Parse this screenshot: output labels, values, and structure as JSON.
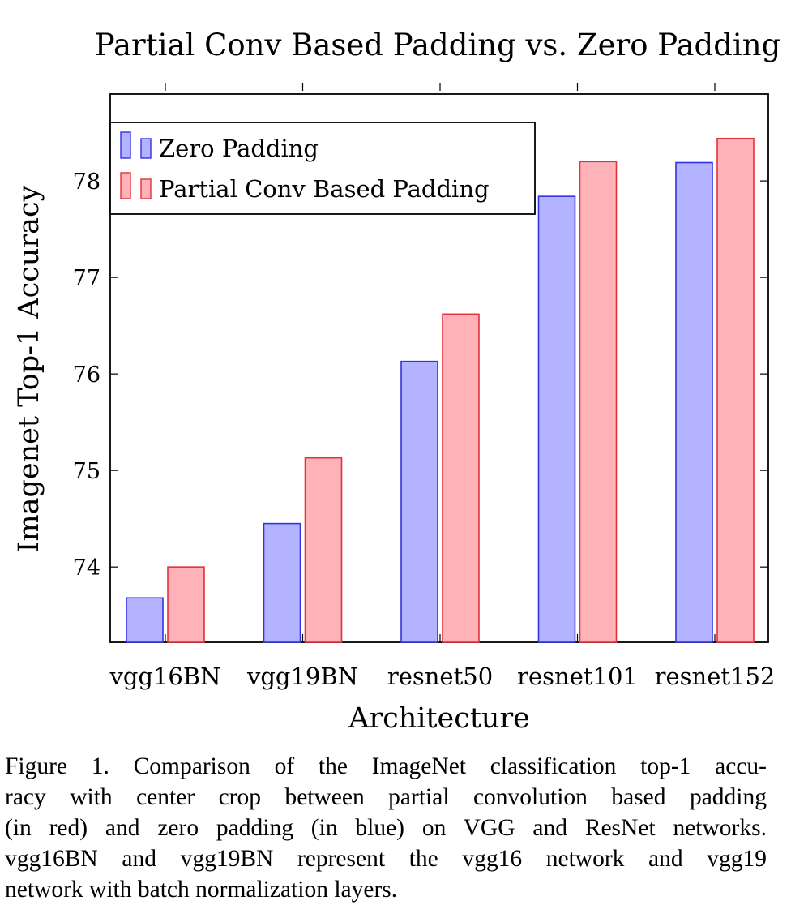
{
  "chart_data": {
    "type": "bar",
    "title": "Partial Conv Based Padding vs. Zero Padding",
    "xlabel": "Architecture",
    "ylabel": "Imagenet Top-1 Accuracy",
    "categories": [
      "vgg16BN",
      "vgg19BN",
      "resnet50",
      "resnet101",
      "resnet152"
    ],
    "series": [
      {
        "name": "Zero Padding",
        "color": "#b3b3ff",
        "stroke": "#3333e6",
        "values": [
          73.68,
          74.45,
          76.13,
          77.84,
          78.19
        ]
      },
      {
        "name": "Partial Conv Based Padding",
        "color": "#ffb3b8",
        "stroke": "#e6303c",
        "values": [
          74.0,
          75.13,
          76.62,
          78.2,
          78.44
        ]
      }
    ],
    "ylim": [
      73.22,
      78.9
    ],
    "yticks": [
      74,
      75,
      76,
      77,
      78
    ],
    "ytick_labels": [
      "74",
      "75",
      "76",
      "77",
      "78"
    ],
    "legend_position": "top-left",
    "grid": false
  },
  "caption": {
    "lines": [
      "Figure 1. Comparison of the ImageNet classification top-1 accu-",
      "racy with center crop between partial convolution based padding",
      "(in red) and zero padding (in blue) on VGG and ResNet networks.",
      "vgg16BN and vgg19BN represent the vgg16 network and vgg19",
      "network with batch normalization layers."
    ]
  }
}
